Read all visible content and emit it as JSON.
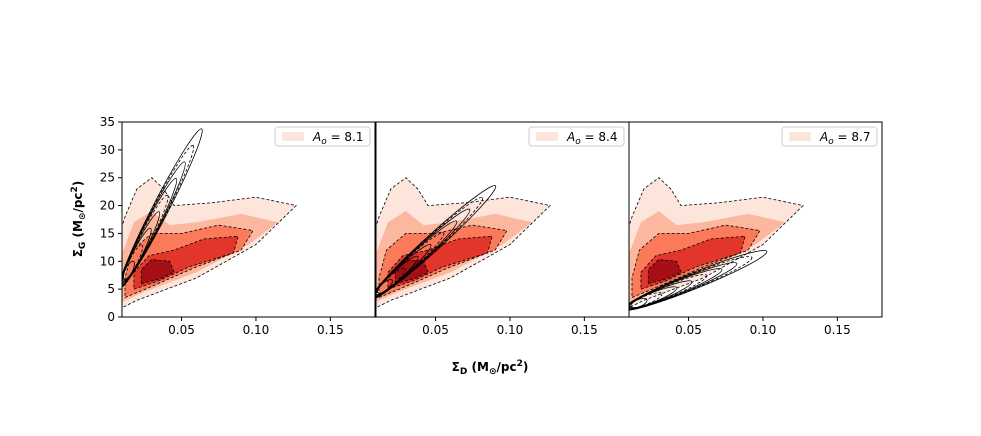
{
  "figure": {
    "colors": {
      "reds": [
        "#fde5dc",
        "#fcb89f",
        "#fb7a5a",
        "#e2352b",
        "#a50f15"
      ],
      "outline": "#000000"
    }
  },
  "chart_data": [
    {
      "type": "contour",
      "panel": 1,
      "legend": "A_o = 8.1",
      "legend_parts": {
        "symbol": "A",
        "subscript": "o",
        "rest": " = 8.1"
      },
      "legend_position": "top-right",
      "xlim": [
        0.01,
        0.18
      ],
      "ylim": [
        0,
        35
      ],
      "xticks": [
        0.05,
        0.1,
        0.15
      ],
      "xtick_labels": [
        "0.05",
        "0.10",
        "0.15"
      ],
      "yticks": [
        0,
        5,
        10,
        15,
        20,
        25,
        30,
        35
      ],
      "ytick_labels": [
        "0",
        "5",
        "10",
        "15",
        "20",
        "25",
        "30",
        "35"
      ],
      "filled_density": {
        "peak": {
          "x": 0.035,
          "y": 8
        },
        "outer_extent": {
          "x": [
            0.01,
            0.125
          ],
          "y": [
            2,
            25
          ]
        }
      },
      "line_contours": {
        "peak": {
          "x": 0.012,
          "y": 8
        },
        "extends_to": {
          "x": 0.06,
          "y": 34
        }
      }
    },
    {
      "type": "contour",
      "panel": 2,
      "legend": "A_o = 8.4",
      "legend_parts": {
        "symbol": "A",
        "subscript": "o",
        "rest": " = 8.4"
      },
      "legend_position": "top-right",
      "xlim": [
        0.01,
        0.18
      ],
      "ylim": [
        0,
        35
      ],
      "xticks": [
        0.05,
        0.1,
        0.15
      ],
      "xtick_labels": [
        "0.05",
        "0.10",
        "0.15"
      ],
      "filled_density": {
        "peak": {
          "x": 0.035,
          "y": 8
        },
        "outer_extent": {
          "x": [
            0.01,
            0.125
          ],
          "y": [
            2,
            25
          ]
        }
      },
      "line_contours": {
        "peak": {
          "x": 0.012,
          "y": 5
        },
        "extends_to": {
          "x": 0.07,
          "y": 23
        }
      }
    },
    {
      "type": "contour",
      "panel": 3,
      "legend": "A_o = 8.7",
      "legend_parts": {
        "symbol": "A",
        "subscript": "o",
        "rest": " = 8.7"
      },
      "legend_position": "top-right",
      "xlim": [
        0.01,
        0.18
      ],
      "ylim": [
        0,
        35
      ],
      "xticks": [
        0.05,
        0.1,
        0.15
      ],
      "xtick_labels": [
        "0.05",
        "0.10",
        "0.15"
      ],
      "filled_density": {
        "peak": {
          "x": 0.035,
          "y": 8
        },
        "outer_extent": {
          "x": [
            0.01,
            0.125
          ],
          "y": [
            2,
            25
          ]
        }
      },
      "line_contours": {
        "peak": {
          "x": 0.012,
          "y": 2
        },
        "extends_to": {
          "x": 0.1,
          "y": 11
        }
      }
    }
  ],
  "axes": {
    "ylabel": {
      "main": "Σ",
      "sub": "G",
      "open": " (M",
      "sun": "⊙",
      "mid": "/pc",
      "sup": "2",
      "close": ")"
    },
    "xlabel": {
      "main": "Σ",
      "sub": "D",
      "open": " (M",
      "sun": "⊙",
      "mid": "/pc",
      "sup": "2",
      "close": ")"
    }
  }
}
